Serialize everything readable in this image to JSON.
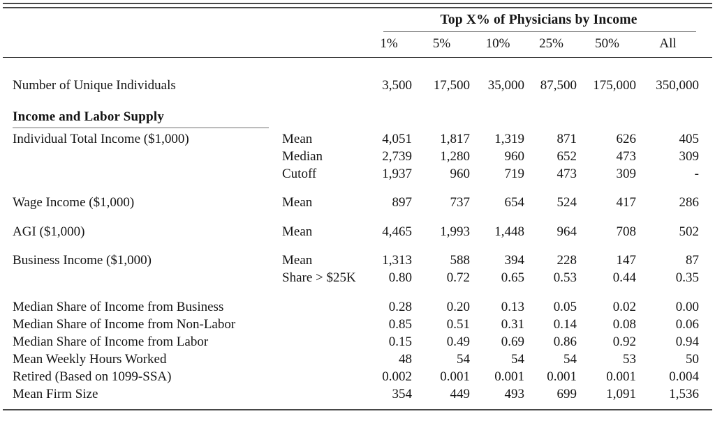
{
  "table": {
    "spanner": "Top X% of Physicians by Income",
    "columns": [
      "1%",
      "5%",
      "10%",
      "25%",
      "50%",
      "All"
    ],
    "rows": [
      {
        "kind": "data",
        "group": true,
        "label": "Number of Unique Individuals",
        "stat": "",
        "values": [
          "3,500",
          "17,500",
          "35,000",
          "87,500",
          "175,000",
          "350,000"
        ]
      },
      {
        "kind": "section",
        "group": true,
        "label": "Income and Labor Supply"
      },
      {
        "kind": "data",
        "group": false,
        "label": "Individual Total Income ($1,000)",
        "stat": "Mean",
        "values": [
          "4,051",
          "1,817",
          "1,319",
          "871",
          "626",
          "405"
        ]
      },
      {
        "kind": "data",
        "group": false,
        "label": "",
        "stat": "Median",
        "values": [
          "2,739",
          "1,280",
          "960",
          "652",
          "473",
          "309"
        ]
      },
      {
        "kind": "data",
        "group": false,
        "label": "",
        "stat": "Cutoff",
        "values": [
          "1,937",
          "960",
          "719",
          "473",
          "309",
          "-"
        ]
      },
      {
        "kind": "data",
        "group": true,
        "label": "Wage Income ($1,000)",
        "stat": "Mean",
        "values": [
          "897",
          "737",
          "654",
          "524",
          "417",
          "286"
        ]
      },
      {
        "kind": "data",
        "group": true,
        "label": "AGI ($1,000)",
        "stat": "Mean",
        "values": [
          "4,465",
          "1,993",
          "1,448",
          "964",
          "708",
          "502"
        ]
      },
      {
        "kind": "data",
        "group": true,
        "label": "Business Income ($1,000)",
        "stat": "Mean",
        "values": [
          "1,313",
          "588",
          "394",
          "228",
          "147",
          "87"
        ]
      },
      {
        "kind": "data",
        "group": false,
        "label": "",
        "stat": "Share > $25K",
        "values": [
          "0.80",
          "0.72",
          "0.65",
          "0.53",
          "0.44",
          "0.35"
        ]
      },
      {
        "kind": "data",
        "group": true,
        "label": "Median Share of Income from Business",
        "stat": "",
        "values": [
          "0.28",
          "0.20",
          "0.13",
          "0.05",
          "0.02",
          "0.00"
        ]
      },
      {
        "kind": "data",
        "group": false,
        "label": "Median Share of Income from Non-Labor",
        "stat": "",
        "values": [
          "0.85",
          "0.51",
          "0.31",
          "0.14",
          "0.08",
          "0.06"
        ]
      },
      {
        "kind": "data",
        "group": false,
        "label": "Median Share of Income from Labor",
        "stat": "",
        "values": [
          "0.15",
          "0.49",
          "0.69",
          "0.86",
          "0.92",
          "0.94"
        ]
      },
      {
        "kind": "data",
        "group": false,
        "label": "Mean Weekly Hours Worked",
        "stat": "",
        "values": [
          "48",
          "54",
          "54",
          "54",
          "53",
          "50"
        ]
      },
      {
        "kind": "data",
        "group": false,
        "label": "Retired (Based on 1099-SSA)",
        "stat": "",
        "values": [
          "0.002",
          "0.001",
          "0.001",
          "0.001",
          "0.001",
          "0.004"
        ]
      },
      {
        "kind": "data",
        "group": false,
        "label": "Mean Firm Size",
        "stat": "",
        "values": [
          "354",
          "449",
          "493",
          "699",
          "1,091",
          "1,536"
        ]
      }
    ]
  }
}
